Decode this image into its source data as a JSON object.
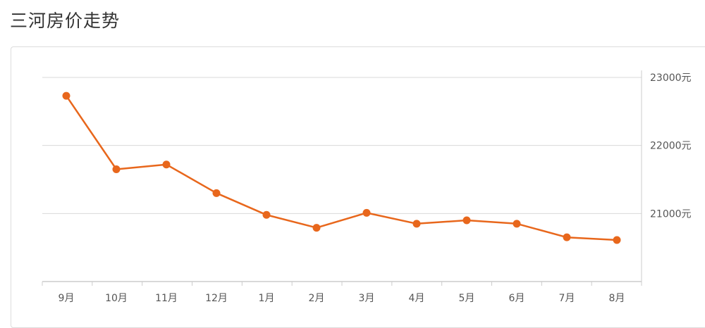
{
  "page": {
    "title": "三河房价走势"
  },
  "chart_data": {
    "type": "line",
    "title": "三河房价走势",
    "xlabel": "",
    "ylabel": "",
    "categories": [
      "9月",
      "10月",
      "11月",
      "12月",
      "1月",
      "2月",
      "3月",
      "4月",
      "5月",
      "6月",
      "7月",
      "8月"
    ],
    "series": [
      {
        "values": [
          22730,
          21650,
          21720,
          21300,
          20980,
          20790,
          21010,
          20850,
          20900,
          20850,
          20650,
          20610
        ]
      }
    ],
    "y_ticks": [
      21000,
      22000,
      23000
    ],
    "y_tick_labels": [
      "21000元",
      "22000元",
      "23000元"
    ],
    "y_axis_position": "right",
    "ylim": [
      20000,
      23000
    ],
    "grid": true,
    "legend": "none",
    "colors": {
      "line": "#e8671c",
      "marker": "#e8671c",
      "grid": "#d9d9d9",
      "axis": "#cccccc"
    }
  }
}
